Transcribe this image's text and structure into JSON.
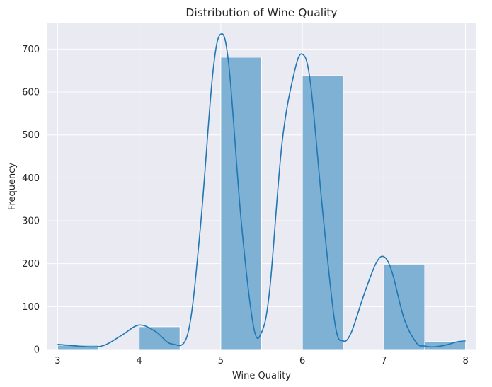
{
  "chart_data": {
    "type": "bar",
    "title": "Distribution of Wine Quality",
    "xlabel": "Wine Quality",
    "ylabel": "Frequency",
    "xlim": [
      2.875,
      8.125
    ],
    "ylim": [
      0,
      760
    ],
    "x_ticks": [
      3,
      4,
      5,
      6,
      7,
      8
    ],
    "y_ticks": [
      0,
      100,
      200,
      300,
      400,
      500,
      600,
      700
    ],
    "grid": true,
    "bars": [
      {
        "x0": 3.0,
        "x1": 3.5,
        "value": 10
      },
      {
        "x0": 3.5,
        "x1": 4.0,
        "value": 0
      },
      {
        "x0": 4.0,
        "x1": 4.5,
        "value": 53
      },
      {
        "x0": 4.5,
        "x1": 5.0,
        "value": 0
      },
      {
        "x0": 5.0,
        "x1": 5.5,
        "value": 681
      },
      {
        "x0": 5.5,
        "x1": 6.0,
        "value": 0
      },
      {
        "x0": 6.0,
        "x1": 6.5,
        "value": 638
      },
      {
        "x0": 6.5,
        "x1": 7.0,
        "value": 0
      },
      {
        "x0": 7.0,
        "x1": 7.5,
        "value": 199
      },
      {
        "x0": 7.5,
        "x1": 8.0,
        "value": 18
      }
    ],
    "kde": {
      "x": [
        3.0,
        3.25,
        3.45,
        3.6,
        3.8,
        4.0,
        4.2,
        4.4,
        4.6,
        4.75,
        4.9,
        5.0,
        5.1,
        5.25,
        5.4,
        5.5,
        5.6,
        5.75,
        5.9,
        6.0,
        6.1,
        6.25,
        6.4,
        6.5,
        6.6,
        6.75,
        6.9,
        7.0,
        7.1,
        7.25,
        7.4,
        7.5,
        7.6,
        7.75,
        7.9,
        8.0
      ],
      "y": [
        12,
        8,
        6,
        12,
        35,
        57,
        42,
        13,
        40,
        285,
        640,
        735,
        660,
        300,
        55,
        40,
        140,
        480,
        645,
        688,
        620,
        320,
        60,
        20,
        40,
        125,
        200,
        216,
        180,
        70,
        15,
        8,
        6,
        10,
        18,
        20
      ]
    },
    "colors": {
      "bar": "#7fb1d5",
      "line": "#1f77b4",
      "plot_bg": "#eaeaf2",
      "grid": "#ffffff"
    }
  }
}
